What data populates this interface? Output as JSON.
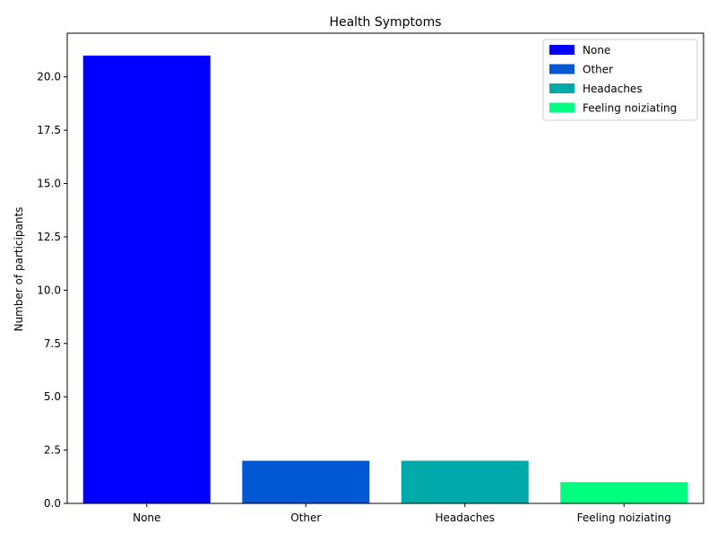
{
  "chart_data": {
    "type": "bar",
    "title": "Health Symptoms",
    "xlabel": "",
    "ylabel": "Number of participants",
    "categories": [
      "None",
      "Other",
      "Headaches",
      "Feeling noiziating"
    ],
    "values": [
      21,
      2,
      2,
      1
    ],
    "colors": [
      "#0000ff",
      "#0058d2",
      "#00aaaa",
      "#00ff7f"
    ],
    "ylim": [
      0,
      22.05
    ],
    "yticks": [
      0.0,
      2.5,
      5.0,
      7.5,
      10.0,
      12.5,
      15.0,
      17.5,
      20.0
    ],
    "ytick_labels": [
      "0.0",
      "2.5",
      "5.0",
      "7.5",
      "10.0",
      "12.5",
      "15.0",
      "17.5",
      "20.0"
    ],
    "legend": {
      "placement": "top-right",
      "entries": [
        "None",
        "Other",
        "Headaches",
        "Feeling noiziating"
      ]
    },
    "grid": false
  }
}
